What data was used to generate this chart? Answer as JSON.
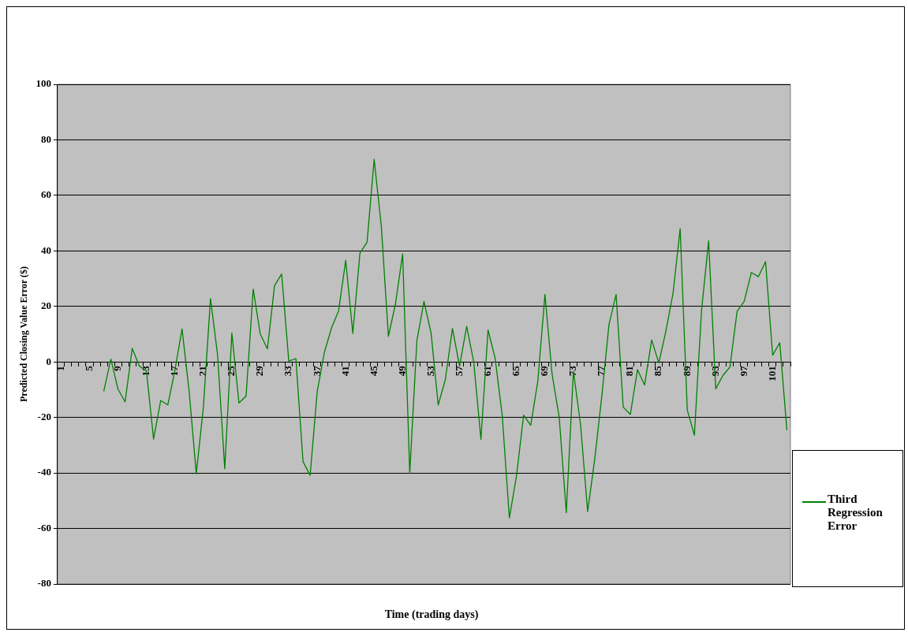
{
  "chart_data": {
    "type": "line",
    "xlabel": "Time (trading days)",
    "ylabel": "Predicted Closing Value Error ($)",
    "categories": [
      "1",
      null,
      null,
      null,
      "5",
      null,
      null,
      null,
      "9",
      null,
      null,
      null,
      "13",
      null,
      null,
      null,
      "17",
      null,
      null,
      null,
      "21",
      null,
      null,
      null,
      "25",
      null,
      null,
      null,
      "29",
      null,
      null,
      null,
      "33",
      null,
      null,
      null,
      "37",
      null,
      null,
      null,
      "41",
      null,
      null,
      null,
      "45",
      null,
      null,
      null,
      "49",
      null,
      null,
      null,
      "53",
      null,
      null,
      null,
      "57",
      null,
      null,
      null,
      "61",
      null,
      null,
      null,
      "65",
      null,
      null,
      null,
      "69",
      null,
      null,
      null,
      "73",
      null,
      null,
      null,
      "77",
      null,
      null,
      null,
      "81",
      null,
      null,
      null,
      "85",
      null,
      null,
      null,
      "89",
      null,
      null,
      null,
      "93",
      null,
      null,
      null,
      "97",
      null,
      null,
      null,
      "101",
      null,
      null
    ],
    "series": [
      {
        "name": "Third Regression Error",
        "color": "#008000",
        "values": [
          null,
          null,
          null,
          null,
          null,
          null,
          -10.6,
          1,
          -9.8,
          -14.4,
          4.9,
          -1.5,
          -3.3,
          -27.8,
          -13.9,
          -15.5,
          -3,
          11.9,
          -10.6,
          -40.3,
          -16.3,
          22.8,
          2.4,
          -38.5,
          10.4,
          -14.8,
          -12.3,
          26.2,
          10,
          4.7,
          27.5,
          31.7,
          0.3,
          1.2,
          -35.9,
          -40.9,
          -10.6,
          3.4,
          12.2,
          18.4,
          36.6,
          10.3,
          39.2,
          43.1,
          73,
          49,
          9.2,
          21,
          38.9,
          -40.1,
          7.6,
          21.8,
          10.4,
          -15.5,
          -6.4,
          12,
          -1.5,
          12.8,
          -0.2,
          -27.9,
          11.5,
          1.3,
          -19.4,
          -56.2,
          -41.1,
          -19.2,
          -22.8,
          -6.9,
          24.3,
          -4.4,
          -19.9,
          -54.3,
          -3.3,
          -22.5,
          -53.9,
          -34.9,
          -12.1,
          13.5,
          24.3,
          -16.3,
          -18.9,
          -2.8,
          -8.3,
          7.9,
          -0.4,
          11.2,
          24.7,
          48,
          -17.3,
          -26.4,
          18.4,
          43.6,
          -9.7,
          -4.9,
          -1.8,
          18.2,
          21.8,
          32.2,
          30.7,
          36.1,
          2.4,
          6.9,
          -24.6
        ]
      }
    ],
    "ylim": [
      -80,
      100
    ],
    "yticks": [
      -80,
      -60,
      -40,
      -20,
      0,
      20,
      40,
      60,
      80,
      100
    ],
    "grid": "y",
    "legend": "right",
    "marker": "none",
    "line_style": "solid"
  }
}
